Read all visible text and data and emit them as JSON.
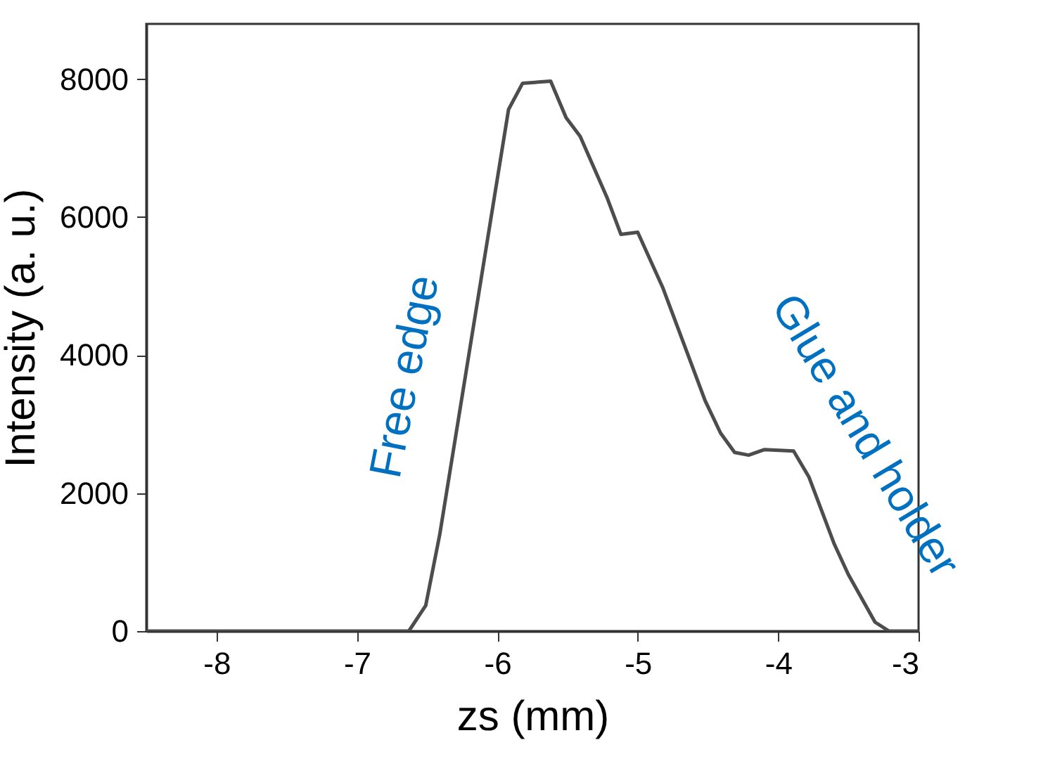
{
  "chart_data": {
    "type": "line",
    "xlabel": "zs (mm)",
    "ylabel": "Intensity (a. u.)",
    "xlim": [
      -8.5,
      -3
    ],
    "xticks": [
      -8,
      -7,
      -6,
      -5,
      -4,
      -3
    ],
    "ylim": [
      0,
      8800
    ],
    "yticks": [
      0,
      2000,
      4000,
      6000,
      8000
    ],
    "x": [
      -8.5,
      -7.5,
      -6.63,
      -6.51,
      -6.41,
      -5.92,
      -5.82,
      -5.62,
      -5.51,
      -5.41,
      -5.22,
      -5.12,
      -5.0,
      -4.82,
      -4.52,
      -4.41,
      -4.31,
      -4.21,
      -4.1,
      -3.89,
      -3.78,
      -3.6,
      -3.5,
      -3.31,
      -3.21,
      -3.0
    ],
    "series": [
      {
        "color": "#4d4d4d",
        "values": [
          0,
          0,
          0,
          370,
          1400,
          7560,
          7940,
          7970,
          7440,
          7170,
          6290,
          5750,
          5780,
          4970,
          3340,
          2870,
          2590,
          2550,
          2630,
          2610,
          2230,
          1260,
          820,
          130,
          0,
          0
        ]
      }
    ],
    "annotations": [
      "Free edge",
      "Glue and holder"
    ],
    "grid": false,
    "line_style": "solid",
    "marker": "none"
  }
}
